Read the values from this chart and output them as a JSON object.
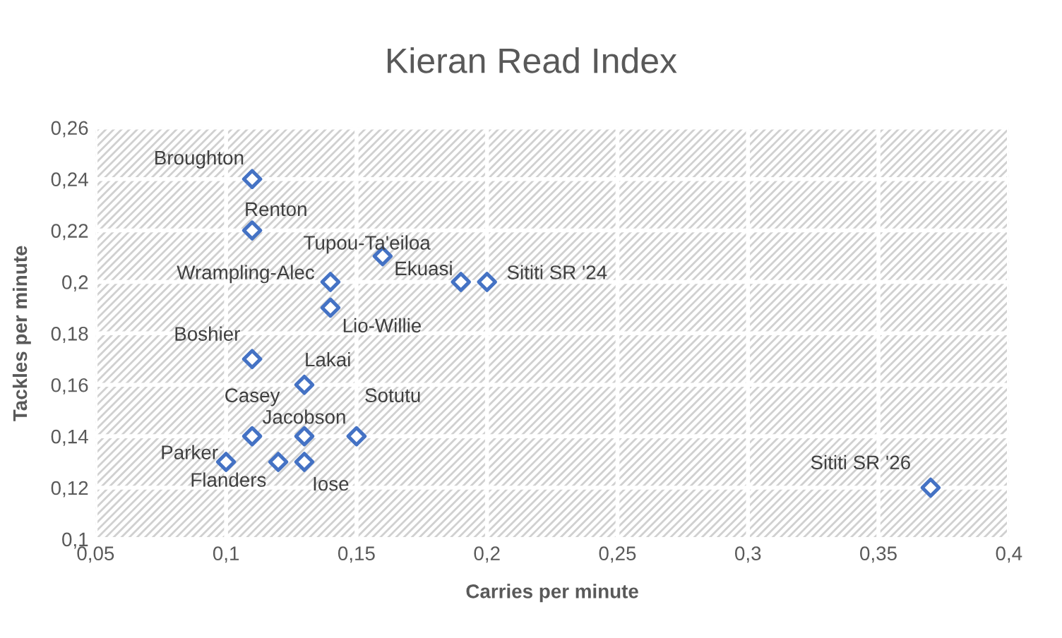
{
  "chart_data": {
    "type": "scatter",
    "title": "Kieran Read Index",
    "xlabel": "Carries per minute",
    "ylabel": "Tackles per minute",
    "x": [
      0.11,
      0.11,
      0.16,
      0.14,
      0.19,
      0.2,
      0.14,
      0.11,
      0.13,
      0.11,
      0.15,
      0.13,
      0.1,
      0.12,
      0.13,
      0.37
    ],
    "values": [
      0.24,
      0.22,
      0.21,
      0.2,
      0.2,
      0.2,
      0.19,
      0.17,
      0.16,
      0.14,
      0.14,
      0.14,
      0.13,
      0.13,
      0.13,
      0.12
    ],
    "color": "#4472c4",
    "marker": "diamond",
    "grid": true,
    "xlim": [
      0.05,
      0.4
    ],
    "ylim": [
      0.1,
      0.26
    ],
    "xticks": [
      {
        "value": 0.05,
        "label": "0,05"
      },
      {
        "value": 0.1,
        "label": "0,1"
      },
      {
        "value": 0.15,
        "label": "0,15"
      },
      {
        "value": 0.2,
        "label": "0,2"
      },
      {
        "value": 0.25,
        "label": "0,25"
      },
      {
        "value": 0.3,
        "label": "0,3"
      },
      {
        "value": 0.35,
        "label": "0,35"
      },
      {
        "value": 0.4,
        "label": "0,4"
      }
    ],
    "yticks": [
      {
        "value": 0.1,
        "label": "0,1"
      },
      {
        "value": 0.12,
        "label": "0,12"
      },
      {
        "value": 0.14,
        "label": "0,14"
      },
      {
        "value": 0.16,
        "label": "0,16"
      },
      {
        "value": 0.18,
        "label": "0,18"
      },
      {
        "value": 0.2,
        "label": "0,2"
      },
      {
        "value": 0.22,
        "label": "0,22"
      },
      {
        "value": 0.24,
        "label": "0,24"
      },
      {
        "value": 0.26,
        "label": "0,26"
      }
    ],
    "annotations": [
      {
        "text": "Broughton",
        "x": 0.11,
        "y": 0.24
      },
      {
        "text": "Renton",
        "x": 0.11,
        "y": 0.22
      },
      {
        "text": "Tupou-Ta'eiloa",
        "x": 0.16,
        "y": 0.21
      },
      {
        "text": "Wrampling-Alec",
        "x": 0.14,
        "y": 0.2
      },
      {
        "text": "Ekuasi",
        "x": 0.19,
        "y": 0.2
      },
      {
        "text": "Sititi SR '24",
        "x": 0.2,
        "y": 0.2
      },
      {
        "text": "Lio-Willie",
        "x": 0.14,
        "y": 0.19
      },
      {
        "text": "Boshier",
        "x": 0.11,
        "y": 0.17
      },
      {
        "text": "Lakai",
        "x": 0.13,
        "y": 0.16
      },
      {
        "text": "Casey",
        "x": 0.11,
        "y": 0.14
      },
      {
        "text": "Sotutu",
        "x": 0.15,
        "y": 0.14
      },
      {
        "text": "Jacobson",
        "x": 0.13,
        "y": 0.14
      },
      {
        "text": "Parker",
        "x": 0.1,
        "y": 0.13
      },
      {
        "text": "Flanders",
        "x": 0.12,
        "y": 0.13
      },
      {
        "text": "Iose",
        "x": 0.13,
        "y": 0.13
      },
      {
        "text": "Sititi SR '26",
        "x": 0.37,
        "y": 0.12
      }
    ]
  }
}
